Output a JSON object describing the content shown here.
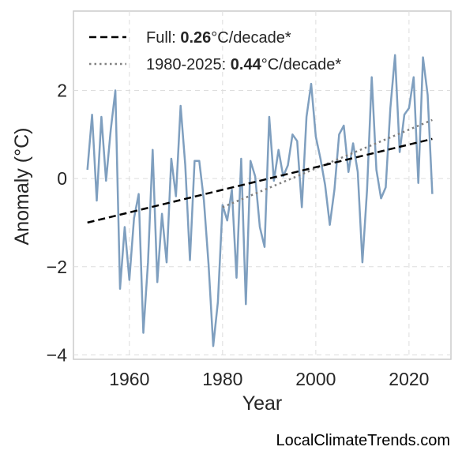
{
  "watermark": "LocalClimateTrends.com",
  "chart_data": {
    "type": "line",
    "title": "",
    "xlabel": "Year",
    "ylabel": "Anomaly (°C)",
    "xlim": [
      1948,
      2029
    ],
    "ylim": [
      -4.1,
      3.8
    ],
    "xticks": [
      1960,
      1980,
      2000,
      2020
    ],
    "yticks": [
      -4,
      -2,
      0,
      2
    ],
    "ytick_labels": [
      "−4",
      "−2",
      "0",
      "2"
    ],
    "grid": true,
    "legend_position": "top-left",
    "colors": {
      "anomaly": "#7f9fbf",
      "full_trend": "#000000",
      "recent_trend": "#808080"
    },
    "series": [
      {
        "style": "solid",
        "x": [
          1951,
          1952,
          1953,
          1954,
          1955,
          1956,
          1957,
          1958,
          1959,
          1960,
          1961,
          1962,
          1963,
          1964,
          1965,
          1966,
          1967,
          1968,
          1969,
          1970,
          1971,
          1972,
          1973,
          1974,
          1975,
          1976,
          1977,
          1978,
          1979,
          1980,
          1981,
          1982,
          1983,
          1984,
          1985,
          1986,
          1987,
          1988,
          1989,
          1990,
          1991,
          1992,
          1993,
          1994,
          1995,
          1996,
          1997,
          1998,
          1999,
          2000,
          2001,
          2002,
          2003,
          2004,
          2005,
          2006,
          2007,
          2008,
          2009,
          2010,
          2011,
          2012,
          2013,
          2014,
          2015,
          2016,
          2017,
          2018,
          2019,
          2020,
          2021,
          2022,
          2023,
          2024,
          2025
        ],
        "y": [
          0.2,
          1.45,
          -0.5,
          1.4,
          -0.05,
          1.1,
          2.0,
          -2.5,
          -1.1,
          -2.3,
          -0.9,
          -0.35,
          -3.5,
          -1.9,
          0.65,
          -2.35,
          -0.8,
          -1.9,
          0.45,
          -0.4,
          1.65,
          0.3,
          -1.85,
          0.4,
          0.4,
          -0.5,
          -1.95,
          -3.8,
          -2.8,
          -0.6,
          -0.95,
          -0.25,
          -2.25,
          0.45,
          -2.85,
          0.4,
          0.05,
          -1.1,
          -1.55,
          1.4,
          -0.05,
          0.65,
          0.05,
          0.3,
          1.0,
          0.85,
          -0.65,
          1.4,
          2.15,
          0.95,
          0.45,
          -0.15,
          -1.05,
          -0.25,
          1.0,
          1.2,
          0.15,
          0.8,
          0.15,
          -1.9,
          -0.25,
          2.3,
          0.2,
          -0.45,
          -0.2,
          1.6,
          2.8,
          0.6,
          1.45,
          1.6,
          2.3,
          -0.1,
          2.75,
          1.9,
          -0.35
        ]
      },
      {
        "name_prefix": "Full: ",
        "name_value": "0.26",
        "name_suffix": "°C/decade*",
        "style": "dashed",
        "x": [
          1951,
          2025
        ],
        "y": [
          -1.0,
          0.9
        ]
      },
      {
        "name_prefix": "1980-2025: ",
        "name_value": "0.44",
        "name_suffix": "°C/decade*",
        "style": "dotted",
        "x": [
          1980,
          2025
        ],
        "y": [
          -0.65,
          1.33
        ]
      }
    ]
  }
}
